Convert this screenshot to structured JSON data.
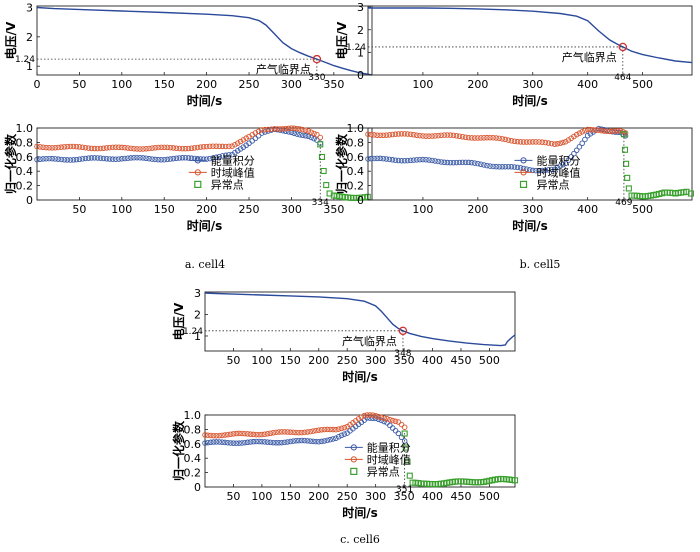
{
  "chart_data": [
    {
      "id": "cell4-voltage",
      "type": "line",
      "ylabel": "电压/V",
      "xlabel": "时间/s",
      "xlim": [
        0,
        395
      ],
      "ylim": [
        0.7,
        3.05
      ],
      "xticks": [
        0,
        50,
        100,
        150,
        200,
        250,
        300,
        350
      ],
      "yticks": [
        1,
        2,
        3
      ],
      "series": [
        {
          "x": [
            0,
            20,
            60,
            100,
            150,
            200,
            230,
            250,
            262,
            270,
            280,
            290,
            300,
            310,
            320,
            330,
            340,
            350,
            360,
            370,
            380,
            395
          ],
          "y": [
            3.0,
            2.96,
            2.92,
            2.88,
            2.83,
            2.77,
            2.72,
            2.65,
            2.55,
            2.4,
            2.1,
            1.8,
            1.6,
            1.46,
            1.34,
            1.24,
            1.13,
            1.02,
            0.93,
            0.85,
            0.78,
            0.7
          ]
        }
      ],
      "critical_point": {
        "x": 330,
        "y": 1.24,
        "x_label": "330",
        "y_label": "1.24",
        "label": "产气临界点"
      }
    },
    {
      "id": "cell4-normalized",
      "type": "scatter",
      "ylabel": "归一化参数",
      "xlabel": "时间/s",
      "xlim": [
        0,
        395
      ],
      "ylim": [
        0,
        1.0
      ],
      "xticks": [
        50,
        100,
        150,
        200,
        250,
        300,
        350
      ],
      "yticks": [
        0,
        0.2,
        0.4,
        0.6,
        0.8,
        1.0
      ],
      "ytick_labels": [
        "0",
        "0.2",
        "0.4",
        "0.6",
        "0.8",
        "1.0"
      ],
      "legend": [
        "能量积分",
        "时域峰值",
        "异常点"
      ],
      "critical_x_label": "334",
      "series": [
        {
          "name": "能量积分",
          "color": "#3a5aa6",
          "x": [
            0,
            50,
            100,
            150,
            200,
            230,
            250,
            265,
            280,
            300,
            320,
            330,
            334
          ],
          "y": [
            0.56,
            0.57,
            0.58,
            0.57,
            0.58,
            0.62,
            0.8,
            0.93,
            0.97,
            0.95,
            0.88,
            0.82,
            0.78
          ]
        },
        {
          "name": "时域峰值",
          "color": "#d9532c",
          "x": [
            0,
            50,
            100,
            150,
            200,
            230,
            250,
            265,
            280,
            300,
            320,
            330,
            334
          ],
          "y": [
            0.74,
            0.73,
            0.72,
            0.72,
            0.73,
            0.76,
            0.87,
            0.97,
            1.0,
            0.99,
            0.96,
            0.92,
            0.88
          ]
        },
        {
          "name": "异常点",
          "color": "#3aa02e",
          "x": [
            334,
            336,
            338,
            341,
            345,
            350,
            360,
            370,
            380,
            390
          ],
          "y": [
            0.78,
            0.6,
            0.4,
            0.2,
            0.08,
            0.05,
            0.04,
            0.04,
            0.04,
            0.04
          ]
        }
      ]
    },
    {
      "id": "cell5-voltage",
      "type": "line",
      "ylabel": "电压/V",
      "xlabel": "时间/s",
      "xlim": [
        0,
        590
      ],
      "ylim": [
        0,
        3.05
      ],
      "xticks": [
        100,
        200,
        300,
        400,
        500
      ],
      "yticks": [
        0,
        1,
        2,
        3
      ],
      "series": [
        {
          "x": [
            0,
            50,
            100,
            150,
            200,
            250,
            300,
            350,
            380,
            400,
            420,
            440,
            455,
            464,
            480,
            500,
            530,
            560,
            590
          ],
          "y": [
            2.96,
            2.96,
            2.96,
            2.95,
            2.92,
            2.88,
            2.82,
            2.72,
            2.6,
            2.4,
            1.95,
            1.55,
            1.35,
            1.24,
            1.05,
            0.9,
            0.75,
            0.62,
            0.55
          ]
        }
      ],
      "critical_point": {
        "x": 464,
        "y": 1.24,
        "x_label": "464",
        "y_label": "1.24",
        "label": "产气临界点"
      }
    },
    {
      "id": "cell5-normalized",
      "type": "scatter",
      "ylabel": "归一化参数",
      "xlabel": "时间/s",
      "xlim": [
        0,
        590
      ],
      "ylim": [
        0,
        1.0
      ],
      "xticks": [
        100,
        200,
        300,
        400,
        500
      ],
      "yticks": [
        0,
        0.2,
        0.4,
        0.6,
        0.8,
        1.0
      ],
      "ytick_labels": [
        "0",
        "0.2",
        "0.4",
        "0.6",
        "0.8",
        "1.0"
      ],
      "legend": [
        "能量积分",
        "时域峰值",
        "异常点"
      ],
      "critical_x_label": "469",
      "series": [
        {
          "name": "能量积分",
          "color": "#3a5aa6",
          "x": [
            0,
            50,
            100,
            150,
            200,
            250,
            300,
            340,
            360,
            380,
            400,
            420,
            440,
            460,
            469
          ],
          "y": [
            0.57,
            0.56,
            0.55,
            0.53,
            0.5,
            0.46,
            0.42,
            0.42,
            0.5,
            0.7,
            0.9,
            0.98,
            0.95,
            0.95,
            0.9
          ]
        },
        {
          "name": "时域峰值",
          "color": "#d9532c",
          "x": [
            0,
            50,
            100,
            150,
            200,
            250,
            300,
            340,
            360,
            380,
            400,
            420,
            440,
            460,
            469
          ],
          "y": [
            0.91,
            0.91,
            0.9,
            0.89,
            0.87,
            0.84,
            0.8,
            0.78,
            0.82,
            0.9,
            0.97,
            0.98,
            0.96,
            0.95,
            0.92
          ]
        },
        {
          "name": "异常点",
          "color": "#3aa02e",
          "x": [
            466,
            468,
            470,
            472,
            475,
            480,
            500,
            520,
            540,
            560,
            580,
            588
          ],
          "y": [
            0.92,
            0.7,
            0.5,
            0.3,
            0.15,
            0.05,
            0.05,
            0.08,
            0.1,
            0.08,
            0.12,
            0.1
          ]
        }
      ]
    },
    {
      "id": "cell6-voltage",
      "type": "line",
      "ylabel": "电压/V",
      "xlabel": "时间/s",
      "xlim": [
        0,
        545
      ],
      "ylim": [
        0.3,
        3.05
      ],
      "xticks": [
        50,
        100,
        150,
        200,
        250,
        300,
        350,
        400,
        450,
        500
      ],
      "yticks": [
        1,
        2,
        3
      ],
      "series": [
        {
          "x": [
            0,
            20,
            50,
            100,
            150,
            200,
            250,
            280,
            300,
            310,
            320,
            330,
            340,
            348,
            360,
            380,
            400,
            430,
            460,
            490,
            520,
            528,
            532,
            540,
            545
          ],
          "y": [
            3.0,
            2.98,
            2.95,
            2.91,
            2.87,
            2.82,
            2.74,
            2.62,
            2.4,
            2.15,
            1.85,
            1.55,
            1.35,
            1.24,
            1.12,
            0.98,
            0.88,
            0.76,
            0.67,
            0.6,
            0.55,
            0.58,
            0.75,
            0.95,
            1.05
          ]
        }
      ],
      "critical_point": {
        "x": 348,
        "y": 1.24,
        "x_label": "348",
        "y_label": "1.24",
        "label": "产气临界点"
      }
    },
    {
      "id": "cell6-normalized",
      "type": "scatter",
      "ylabel": "归一化参数",
      "xlabel": "时间/s",
      "xlim": [
        0,
        545
      ],
      "ylim": [
        0,
        1.0
      ],
      "xticks": [
        50,
        100,
        150,
        200,
        250,
        300,
        350,
        400,
        450,
        500
      ],
      "yticks": [
        0,
        0.2,
        0.4,
        0.6,
        0.8,
        1.0
      ],
      "ytick_labels": [
        "0",
        "0.2",
        "0.4",
        "0.6",
        "0.8",
        "1.0"
      ],
      "legend": [
        "能量积分",
        "时域峰值",
        "异常点"
      ],
      "critical_x_label": "351",
      "series": [
        {
          "name": "能量积分",
          "color": "#3a5aa6",
          "x": [
            0,
            50,
            100,
            150,
            200,
            230,
            250,
            270,
            285,
            300,
            320,
            340,
            351
          ],
          "y": [
            0.61,
            0.62,
            0.62,
            0.63,
            0.64,
            0.67,
            0.74,
            0.88,
            0.97,
            0.95,
            0.88,
            0.75,
            0.65
          ]
        },
        {
          "name": "时域峰值",
          "color": "#d9532c",
          "x": [
            0,
            50,
            100,
            150,
            200,
            230,
            250,
            270,
            285,
            300,
            320,
            340,
            351
          ],
          "y": [
            0.72,
            0.73,
            0.74,
            0.76,
            0.78,
            0.8,
            0.85,
            0.94,
            1.0,
            0.99,
            0.96,
            0.9,
            0.82
          ]
        },
        {
          "name": "异常点",
          "color": "#3aa02e",
          "x": [
            351,
            353,
            356,
            360,
            365,
            380,
            400,
            430,
            460,
            490,
            520,
            545
          ],
          "y": [
            0.75,
            0.55,
            0.35,
            0.15,
            0.05,
            0.04,
            0.05,
            0.06,
            0.07,
            0.08,
            0.1,
            0.1
          ]
        }
      ]
    }
  ],
  "captions": {
    "cell4": "a.  cell4",
    "cell5": "b.  cell5",
    "cell6": "c.  cell6"
  }
}
